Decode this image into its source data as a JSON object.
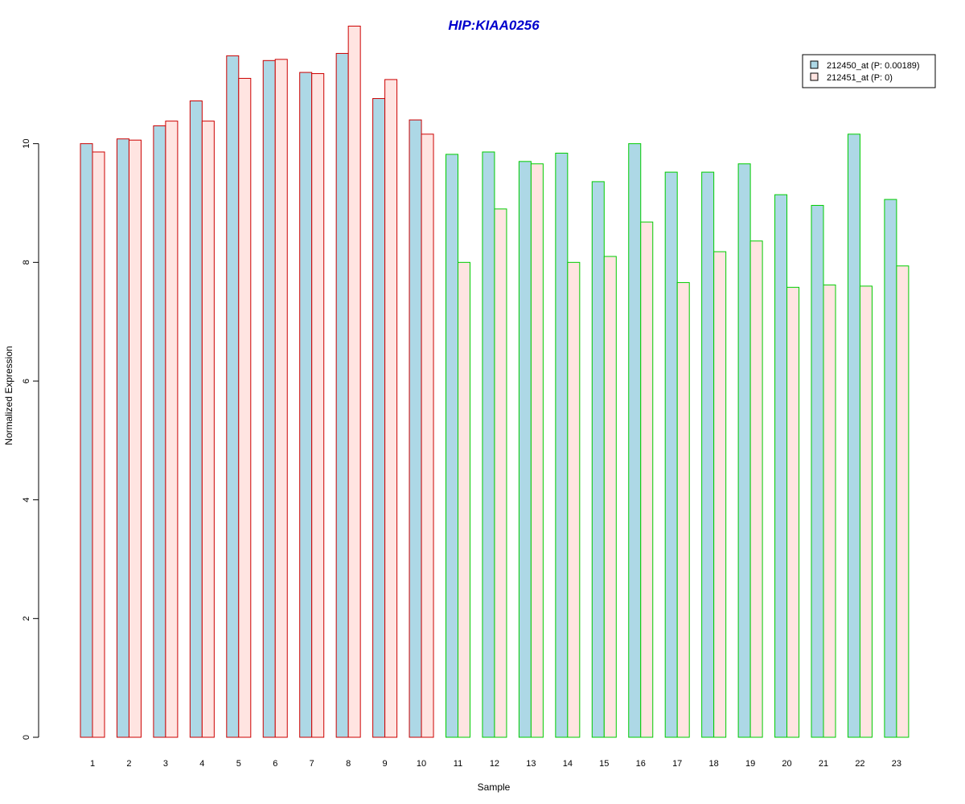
{
  "chart_data": {
    "type": "bar",
    "title": "HIP:KIAA0256",
    "xlabel": "Sample",
    "ylabel": "Normalized Expression",
    "ylim": [
      0,
      12
    ],
    "yticks": [
      0,
      2,
      4,
      6,
      8,
      10
    ],
    "categories": [
      "1",
      "2",
      "3",
      "4",
      "5",
      "6",
      "7",
      "8",
      "9",
      "10",
      "11",
      "12",
      "13",
      "14",
      "15",
      "16",
      "17",
      "18",
      "19",
      "20",
      "21",
      "22",
      "23"
    ],
    "series": [
      {
        "name": "212450_at (P: 0.00189)",
        "fill": "#add8e6",
        "values": [
          10.0,
          10.08,
          10.3,
          10.72,
          11.48,
          11.4,
          11.2,
          11.52,
          10.76,
          10.4,
          9.82,
          9.86,
          9.7,
          9.84,
          9.36,
          10.0,
          9.52,
          9.52,
          9.66,
          9.14,
          8.96,
          10.16,
          9.06
        ]
      },
      {
        "name": "212451_at (P: 0)",
        "fill": "#ffe4e1",
        "values": [
          9.86,
          10.06,
          10.38,
          10.38,
          11.1,
          11.42,
          11.18,
          11.98,
          11.08,
          10.16,
          8.0,
          8.9,
          9.66,
          8.0,
          8.1,
          8.68,
          7.66,
          8.18,
          8.36,
          7.58,
          7.62,
          7.6,
          7.94
        ]
      }
    ],
    "group_border_colors": [
      "#cc0000",
      "#cc0000",
      "#cc0000",
      "#cc0000",
      "#cc0000",
      "#cc0000",
      "#cc0000",
      "#cc0000",
      "#cc0000",
      "#cc0000",
      "#00cc00",
      "#00cc00",
      "#00cc00",
      "#00cc00",
      "#00cc00",
      "#00cc00",
      "#00cc00",
      "#00cc00",
      "#00cc00",
      "#00cc00",
      "#00cc00",
      "#00cc00",
      "#00cc00"
    ],
    "grid": false,
    "legend_position": "top-right"
  }
}
